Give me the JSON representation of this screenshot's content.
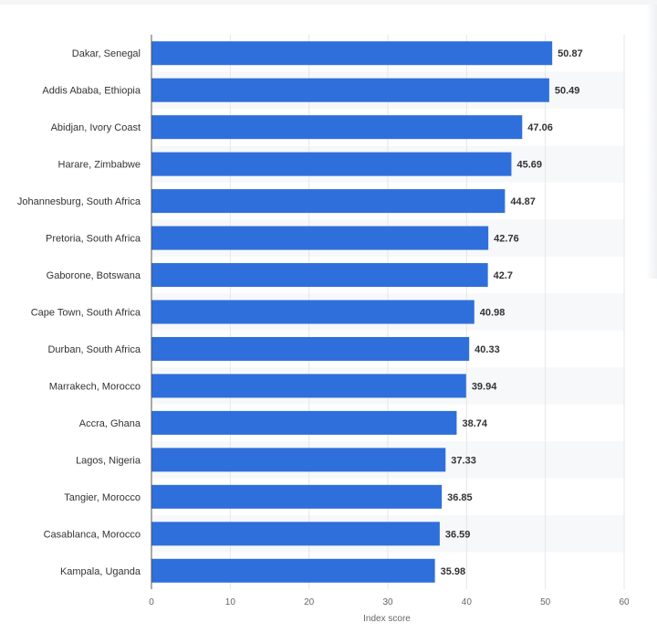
{
  "chart_data": {
    "type": "bar",
    "orientation": "horizontal",
    "categories": [
      "Dakar, Senegal",
      "Addis Ababa, Ethiopia",
      "Abidjan, Ivory Coast",
      "Harare, Zimbabwe",
      "Johannesburg, South Africa",
      "Pretoria, South Africa",
      "Gaborone, Botswana",
      "Cape Town, South Africa",
      "Durban, South Africa",
      "Marrakech, Morocco",
      "Accra, Ghana",
      "Lagos, Nigeria",
      "Tangier, Morocco",
      "Casablanca, Morocco",
      "Kampala, Uganda"
    ],
    "values": [
      50.87,
      50.49,
      47.06,
      45.69,
      44.87,
      42.76,
      42.7,
      40.98,
      40.33,
      39.94,
      38.74,
      37.33,
      36.85,
      36.59,
      35.98
    ],
    "value_labels": [
      "50.87",
      "50.49",
      "47.06",
      "45.69",
      "44.87",
      "42.76",
      "42.7",
      "40.98",
      "40.33",
      "39.94",
      "38.74",
      "37.33",
      "36.85",
      "36.59",
      "35.98"
    ],
    "xlabel": "Index score",
    "xlim": [
      0,
      60
    ],
    "xticks": [
      0,
      10,
      20,
      30,
      40,
      50,
      60
    ],
    "grid": true,
    "bar_color": "#2f6fdb",
    "legend": "none"
  }
}
